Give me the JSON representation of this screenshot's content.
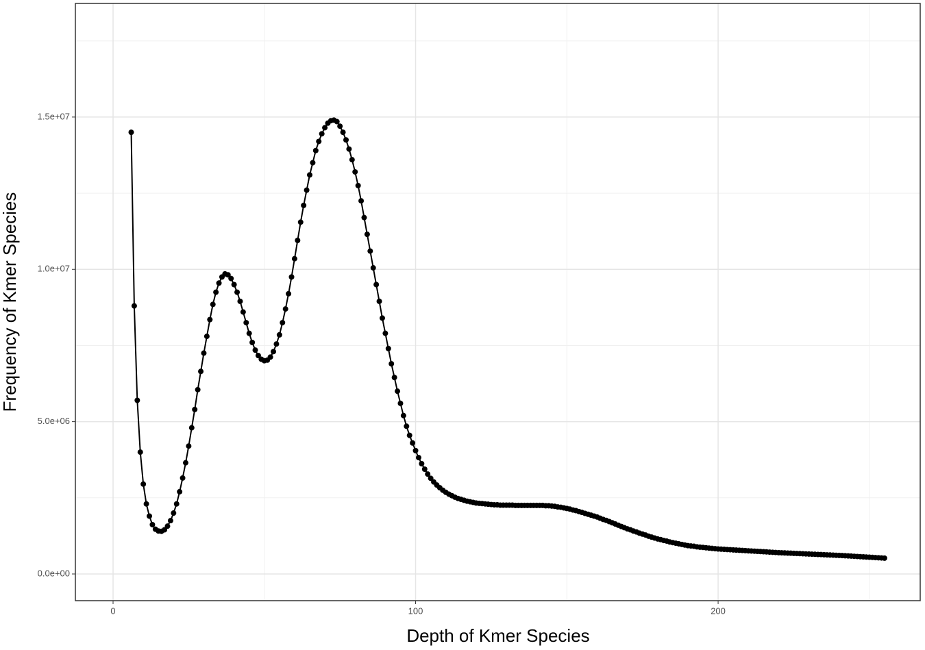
{
  "chart_data": {
    "type": "line",
    "x_label": "Depth of Kmer Species",
    "y_label": "Frequency of Kmer Species",
    "color": "#000000",
    "grid": true,
    "markers": true,
    "xlim": [
      -12.46,
      266.8
    ],
    "ylim": [
      -877000,
      18730000
    ],
    "xticks": [
      0,
      100,
      200
    ],
    "yticks": [
      {
        "value": 0,
        "label": "0.0e+00"
      },
      {
        "value": 5000000,
        "label": "5.0e+06"
      },
      {
        "value": 10000000,
        "label": "1.0e+07"
      },
      {
        "value": 15000000,
        "label": "1.5e+07"
      }
    ],
    "x": [
      6,
      7,
      8,
      9,
      10,
      11,
      12,
      13,
      14,
      15,
      16,
      17,
      18,
      19,
      20,
      21,
      22,
      23,
      24,
      25,
      26,
      27,
      28,
      29,
      30,
      31,
      32,
      33,
      34,
      35,
      36,
      37,
      38,
      39,
      40,
      41,
      42,
      43,
      44,
      45,
      46,
      47,
      48,
      49,
      50,
      51,
      52,
      53,
      54,
      55,
      56,
      57,
      58,
      59,
      60,
      61,
      62,
      63,
      64,
      65,
      66,
      67,
      68,
      69,
      70,
      71,
      72,
      73,
      74,
      75,
      76,
      77,
      78,
      79,
      80,
      81,
      82,
      83,
      84,
      85,
      86,
      87,
      88,
      89,
      90,
      91,
      92,
      93,
      94,
      95,
      96,
      97,
      98,
      99,
      100,
      101,
      102,
      103,
      104,
      105,
      106,
      107,
      108,
      109,
      110,
      111,
      112,
      113,
      114,
      115,
      116,
      117,
      118,
      119,
      120,
      121,
      122,
      123,
      124,
      125,
      126,
      127,
      128,
      129,
      130,
      131,
      132,
      133,
      134,
      135,
      136,
      137,
      138,
      139,
      140,
      141,
      142,
      143,
      144,
      145,
      146,
      147,
      148,
      149,
      150,
      151,
      152,
      153,
      154,
      155,
      156,
      157,
      158,
      159,
      160,
      161,
      162,
      163,
      164,
      165,
      166,
      167,
      168,
      169,
      170,
      171,
      172,
      173,
      174,
      175,
      176,
      177,
      178,
      179,
      180,
      181,
      182,
      183,
      184,
      185,
      186,
      187,
      188,
      189,
      190,
      191,
      192,
      193,
      194,
      195,
      196,
      197,
      198,
      199,
      200,
      201,
      202,
      203,
      204,
      205,
      206,
      207,
      208,
      209,
      210,
      211,
      212,
      213,
      214,
      215,
      216,
      217,
      218,
      219,
      220,
      221,
      222,
      223,
      224,
      225,
      226,
      227,
      228,
      229,
      230,
      231,
      232,
      233,
      234,
      235,
      236,
      237,
      238,
      239,
      240,
      241,
      242,
      243,
      244,
      245,
      246,
      247,
      248,
      249,
      250,
      251,
      252,
      253,
      254,
      255
    ],
    "values": [
      14500000.0,
      8800000.0,
      5700000.0,
      4000000.0,
      2950000.0,
      2300000.0,
      1900000.0,
      1620000.0,
      1470000.0,
      1410000.0,
      1400000.0,
      1450000.0,
      1570000.0,
      1750000.0,
      2000000.0,
      2300000.0,
      2700000.0,
      3150000.0,
      3650000.0,
      4200000.0,
      4800000.0,
      5400000.0,
      6050000.0,
      6650000.0,
      7250000.0,
      7800000.0,
      8350000.0,
      8850000.0,
      9250000.0,
      9550000.0,
      9750000.0,
      9850000.0,
      9820000.0,
      9700000.0,
      9500000.0,
      9250000.0,
      8950000.0,
      8600000.0,
      8250000.0,
      7900000.0,
      7600000.0,
      7350000.0,
      7170000.0,
      7050000.0,
      7000000.0,
      7020000.0,
      7120000.0,
      7300000.0,
      7550000.0,
      7850000.0,
      8250000.0,
      8700000.0,
      9200000.0,
      9750000.0,
      10350000.0,
      10950000.0,
      11550000.0,
      12100000.0,
      12600000.0,
      13100000.0,
      13500000.0,
      13900000.0,
      14200000.0,
      14450000.0,
      14650000.0,
      14800000.0,
      14880000.0,
      14900000.0,
      14850000.0,
      14700000.0,
      14500000.0,
      14250000.0,
      13950000.0,
      13600000.0,
      13200000.0,
      12750000.0,
      12250000.0,
      11700000.0,
      11150000.0,
      10600000.0,
      10050000.0,
      9500000.0,
      8950000.0,
      8400000.0,
      7900000.0,
      7400000.0,
      6900000.0,
      6450000.0,
      6000000.0,
      5600000.0,
      5200000.0,
      4850000.0,
      4550000.0,
      4300000.0,
      4050000.0,
      3820000.0,
      3620000.0,
      3440000.0,
      3280000.0,
      3140000.0,
      3020000.0,
      2920000.0,
      2830000.0,
      2750000.0,
      2680000.0,
      2620000.0,
      2570000.0,
      2520000.0,
      2480000.0,
      2450000.0,
      2420000.0,
      2390000.0,
      2370000.0,
      2350000.0,
      2330000.0,
      2320000.0,
      2310000.0,
      2300000.0,
      2290000.0,
      2280000.0,
      2270000.0,
      2270000.0,
      2260000.0,
      2260000.0,
      2260000.0,
      2260000.0,
      2260000.0,
      2250000.0,
      2250000.0,
      2250000.0,
      2250000.0,
      2250000.0,
      2250000.0,
      2250000.0,
      2250000.0,
      2250000.0,
      2250000.0,
      2240000.0,
      2240000.0,
      2230000.0,
      2220000.0,
      2200000.0,
      2190000.0,
      2170000.0,
      2150000.0,
      2130000.0,
      2100000.0,
      2080000.0,
      2050000.0,
      2020000.0,
      1990000.0,
      1960000.0,
      1930000.0,
      1900000.0,
      1870000.0,
      1830000.0,
      1790000.0,
      1760000.0,
      1720000.0,
      1680000.0,
      1640000.0,
      1600000.0,
      1560000.0,
      1520000.0,
      1480000.0,
      1450000.0,
      1410000.0,
      1380000.0,
      1340000.0,
      1310000.0,
      1280000.0,
      1240000.0,
      1210000.0,
      1180000.0,
      1150000.0,
      1130000.0,
      1100000.0,
      1080000.0,
      1050000.0,
      1030000.0,
      1010000.0,
      990000.0,
      970000.0,
      950000.0,
      930000.0,
      920000.0,
      910000.0,
      890000.0,
      880000.0,
      870000.0,
      860000.0,
      850000.0,
      840000.0,
      830000.0,
      820000.0,
      814000.0,
      808000.0,
      802000.0,
      796000.0,
      790000.0,
      784000.0,
      778000.0,
      772000.0,
      766000.0,
      760000.0,
      754000.0,
      748000.0,
      742000.0,
      736000.0,
      730000.0,
      724000.0,
      718000.0,
      712000.0,
      706000.0,
      700000.0,
      695000.0,
      691000.0,
      686000.0,
      682000.0,
      677000.0,
      673000.0,
      668000.0,
      664000.0,
      659000.0,
      655000.0,
      650000.0,
      646000.0,
      641000.0,
      637000.0,
      632000.0,
      628000.0,
      623000.0,
      619000.0,
      614000.0,
      610000.0,
      604000.0,
      598000.0,
      592000.0,
      586000.0,
      580000.0,
      574000.0,
      568000.0,
      562000.0,
      556000.0,
      550000.0,
      544000.0,
      538000.0,
      532000.0,
      526000.0,
      520000.0
    ]
  }
}
